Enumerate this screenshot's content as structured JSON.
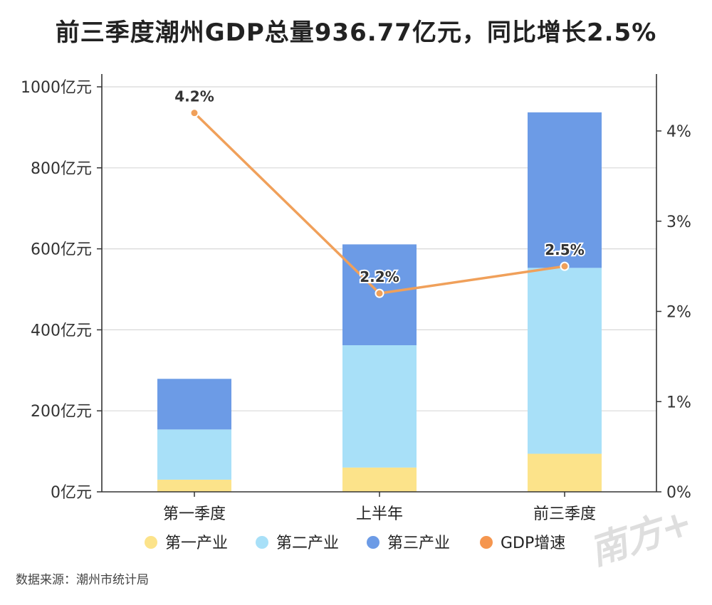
{
  "title": "前三季度潮州GDP总量936.77亿元，同比增长2.5%",
  "source": "数据来源：潮州市统计局",
  "watermark": "南方+",
  "chart_data": {
    "type": "bar",
    "stacked": true,
    "categories": [
      "第一季度",
      "上半年",
      "前三季度"
    ],
    "series": [
      {
        "name": "第一产业",
        "values": [
          30,
          60,
          94
        ],
        "color": "#FCE38A",
        "axis": "left"
      },
      {
        "name": "第二产业",
        "values": [
          124,
          302,
          459
        ],
        "color": "#A8E0F8",
        "axis": "left"
      },
      {
        "name": "第三产业",
        "values": [
          125,
          249,
          384
        ],
        "color": "#6C9BE6",
        "axis": "left"
      }
    ],
    "line_series": {
      "name": "GDP增速",
      "type": "line",
      "values": [
        4.2,
        2.2,
        2.5
      ],
      "labels": [
        "4.2%",
        "2.2%",
        "2.5%"
      ],
      "color": "#F0A05A",
      "axis": "right"
    },
    "y_left": {
      "ylim": [
        0,
        1000
      ],
      "ticks": [
        0,
        200,
        400,
        600,
        800,
        1000
      ],
      "tick_labels": [
        "0亿元",
        "200亿元",
        "400亿元",
        "600亿元",
        "800亿元",
        "1000亿元"
      ]
    },
    "y_right": {
      "ylim": [
        0,
        4.5
      ],
      "ticks": [
        0,
        1,
        2,
        3,
        4
      ],
      "tick_labels": [
        "0%",
        "1%",
        "2%",
        "3%",
        "4%"
      ]
    },
    "grid": true,
    "legend_position": "bottom"
  }
}
